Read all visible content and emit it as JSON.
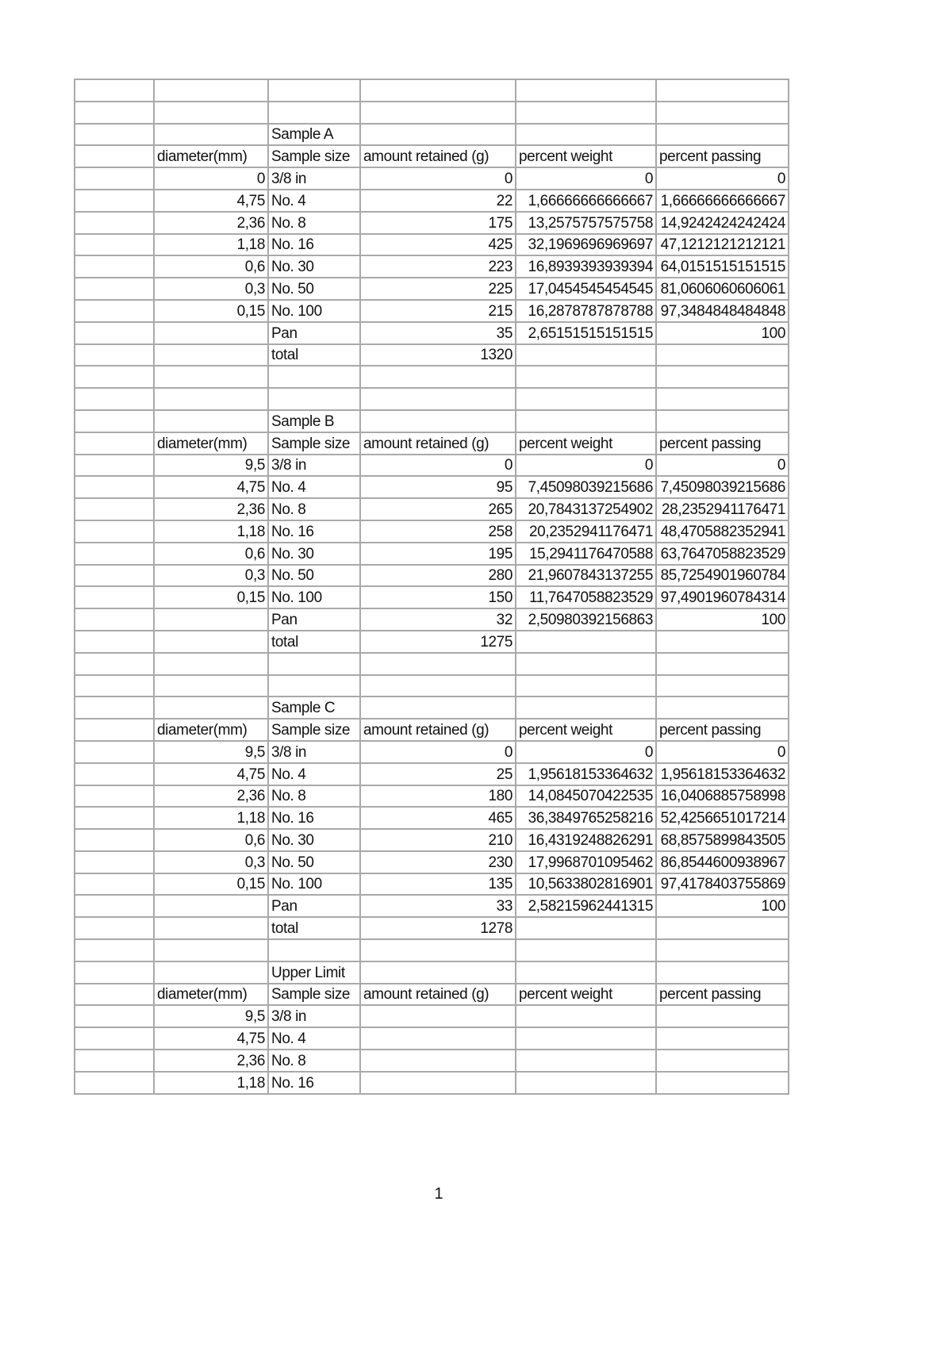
{
  "columns": [
    "",
    "diameter(mm)",
    "Sample size",
    "amount retained (g)",
    "percent weight",
    "percent passing"
  ],
  "rows": [
    [
      "",
      "",
      "",
      "",
      "",
      ""
    ],
    [
      "",
      "",
      "",
      "",
      "",
      ""
    ],
    [
      "",
      "",
      "Sample A",
      "",
      "",
      ""
    ],
    [
      "",
      "diameter(mm)",
      "Sample size",
      "amount retained (g)",
      "percent weight",
      "percent passing"
    ],
    [
      "",
      "0",
      "3/8 in",
      "0",
      "0",
      "0"
    ],
    [
      "",
      "4,75",
      "No. 4",
      "22",
      "1,66666666666667",
      "1,66666666666667"
    ],
    [
      "",
      "2,36",
      "No. 8",
      "175",
      "13,2575757575758",
      "14,9242424242424"
    ],
    [
      "",
      "1,18",
      "No. 16",
      "425",
      "32,1969696969697",
      "47,1212121212121"
    ],
    [
      "",
      "0,6",
      "No. 30",
      "223",
      "16,8939393939394",
      "64,0151515151515"
    ],
    [
      "",
      "0,3",
      "No. 50",
      "225",
      "17,0454545454545",
      "81,0606060606061"
    ],
    [
      "",
      "0,15",
      "No. 100",
      "215",
      "16,2878787878788",
      "97,3484848484848"
    ],
    [
      "",
      "",
      "Pan",
      "35",
      "2,65151515151515",
      "100"
    ],
    [
      "",
      "",
      "total",
      "1320",
      "",
      ""
    ],
    [
      "",
      "",
      "",
      "",
      "",
      ""
    ],
    [
      "",
      "",
      "",
      "",
      "",
      ""
    ],
    [
      "",
      "",
      "Sample B",
      "",
      "",
      ""
    ],
    [
      "",
      "diameter(mm)",
      "Sample size",
      "amount retained (g)",
      "percent weight",
      "percent passing"
    ],
    [
      "",
      "9,5",
      "3/8 in",
      "0",
      "0",
      "0"
    ],
    [
      "",
      "4,75",
      "No. 4",
      "95",
      "7,45098039215686",
      "7,45098039215686"
    ],
    [
      "",
      "2,36",
      "No. 8",
      "265",
      "20,7843137254902",
      "28,2352941176471"
    ],
    [
      "",
      "1,18",
      "No. 16",
      "258",
      "20,2352941176471",
      "48,4705882352941"
    ],
    [
      "",
      "0,6",
      "No. 30",
      "195",
      "15,2941176470588",
      "63,7647058823529"
    ],
    [
      "",
      "0,3",
      "No. 50",
      "280",
      "21,9607843137255",
      "85,7254901960784"
    ],
    [
      "",
      "0,15",
      "No. 100",
      "150",
      "11,7647058823529",
      "97,4901960784314"
    ],
    [
      "",
      "",
      "Pan",
      "32",
      "2,50980392156863",
      "100"
    ],
    [
      "",
      "",
      "total",
      "1275",
      "",
      ""
    ],
    [
      "",
      "",
      "",
      "",
      "",
      ""
    ],
    [
      "",
      "",
      "",
      "",
      "",
      ""
    ],
    [
      "",
      "",
      "Sample C",
      "",
      "",
      ""
    ],
    [
      "",
      "diameter(mm)",
      "Sample size",
      "amount retained (g)",
      "percent weight",
      "percent passing"
    ],
    [
      "",
      "9,5",
      "3/8 in",
      "0",
      "0",
      "0"
    ],
    [
      "",
      "4,75",
      "No. 4",
      "25",
      "1,95618153364632",
      "1,95618153364632"
    ],
    [
      "",
      "2,36",
      "No. 8",
      "180",
      "14,0845070422535",
      "16,0406885758998"
    ],
    [
      "",
      "1,18",
      "No. 16",
      "465",
      "36,3849765258216",
      "52,4256651017214"
    ],
    [
      "",
      "0,6",
      "No. 30",
      "210",
      "16,4319248826291",
      "68,8575899843505"
    ],
    [
      "",
      "0,3",
      "No. 50",
      "230",
      "17,9968701095462",
      "86,8544600938967"
    ],
    [
      "",
      "0,15",
      "No. 100",
      "135",
      "10,5633802816901",
      "97,4178403755869"
    ],
    [
      "",
      "",
      "Pan",
      "33",
      "2,58215962441315",
      "100"
    ],
    [
      "",
      "",
      "total",
      "1278",
      "",
      ""
    ],
    [
      "",
      "",
      "",
      "",
      "",
      ""
    ],
    [
      "",
      "",
      "Upper Limit",
      "",
      "",
      ""
    ],
    [
      "",
      "diameter(mm)",
      "Sample size",
      "amount retained (g)",
      "percent weight",
      "percent passing"
    ],
    [
      "",
      "9,5",
      "3/8 in",
      "",
      "",
      ""
    ],
    [
      "",
      "4,75",
      "No. 4",
      "",
      "",
      ""
    ],
    [
      "",
      "2,36",
      "No. 8",
      "",
      "",
      ""
    ],
    [
      "",
      "1,18",
      "No. 16",
      "",
      "",
      ""
    ]
  ],
  "page_number": "1"
}
